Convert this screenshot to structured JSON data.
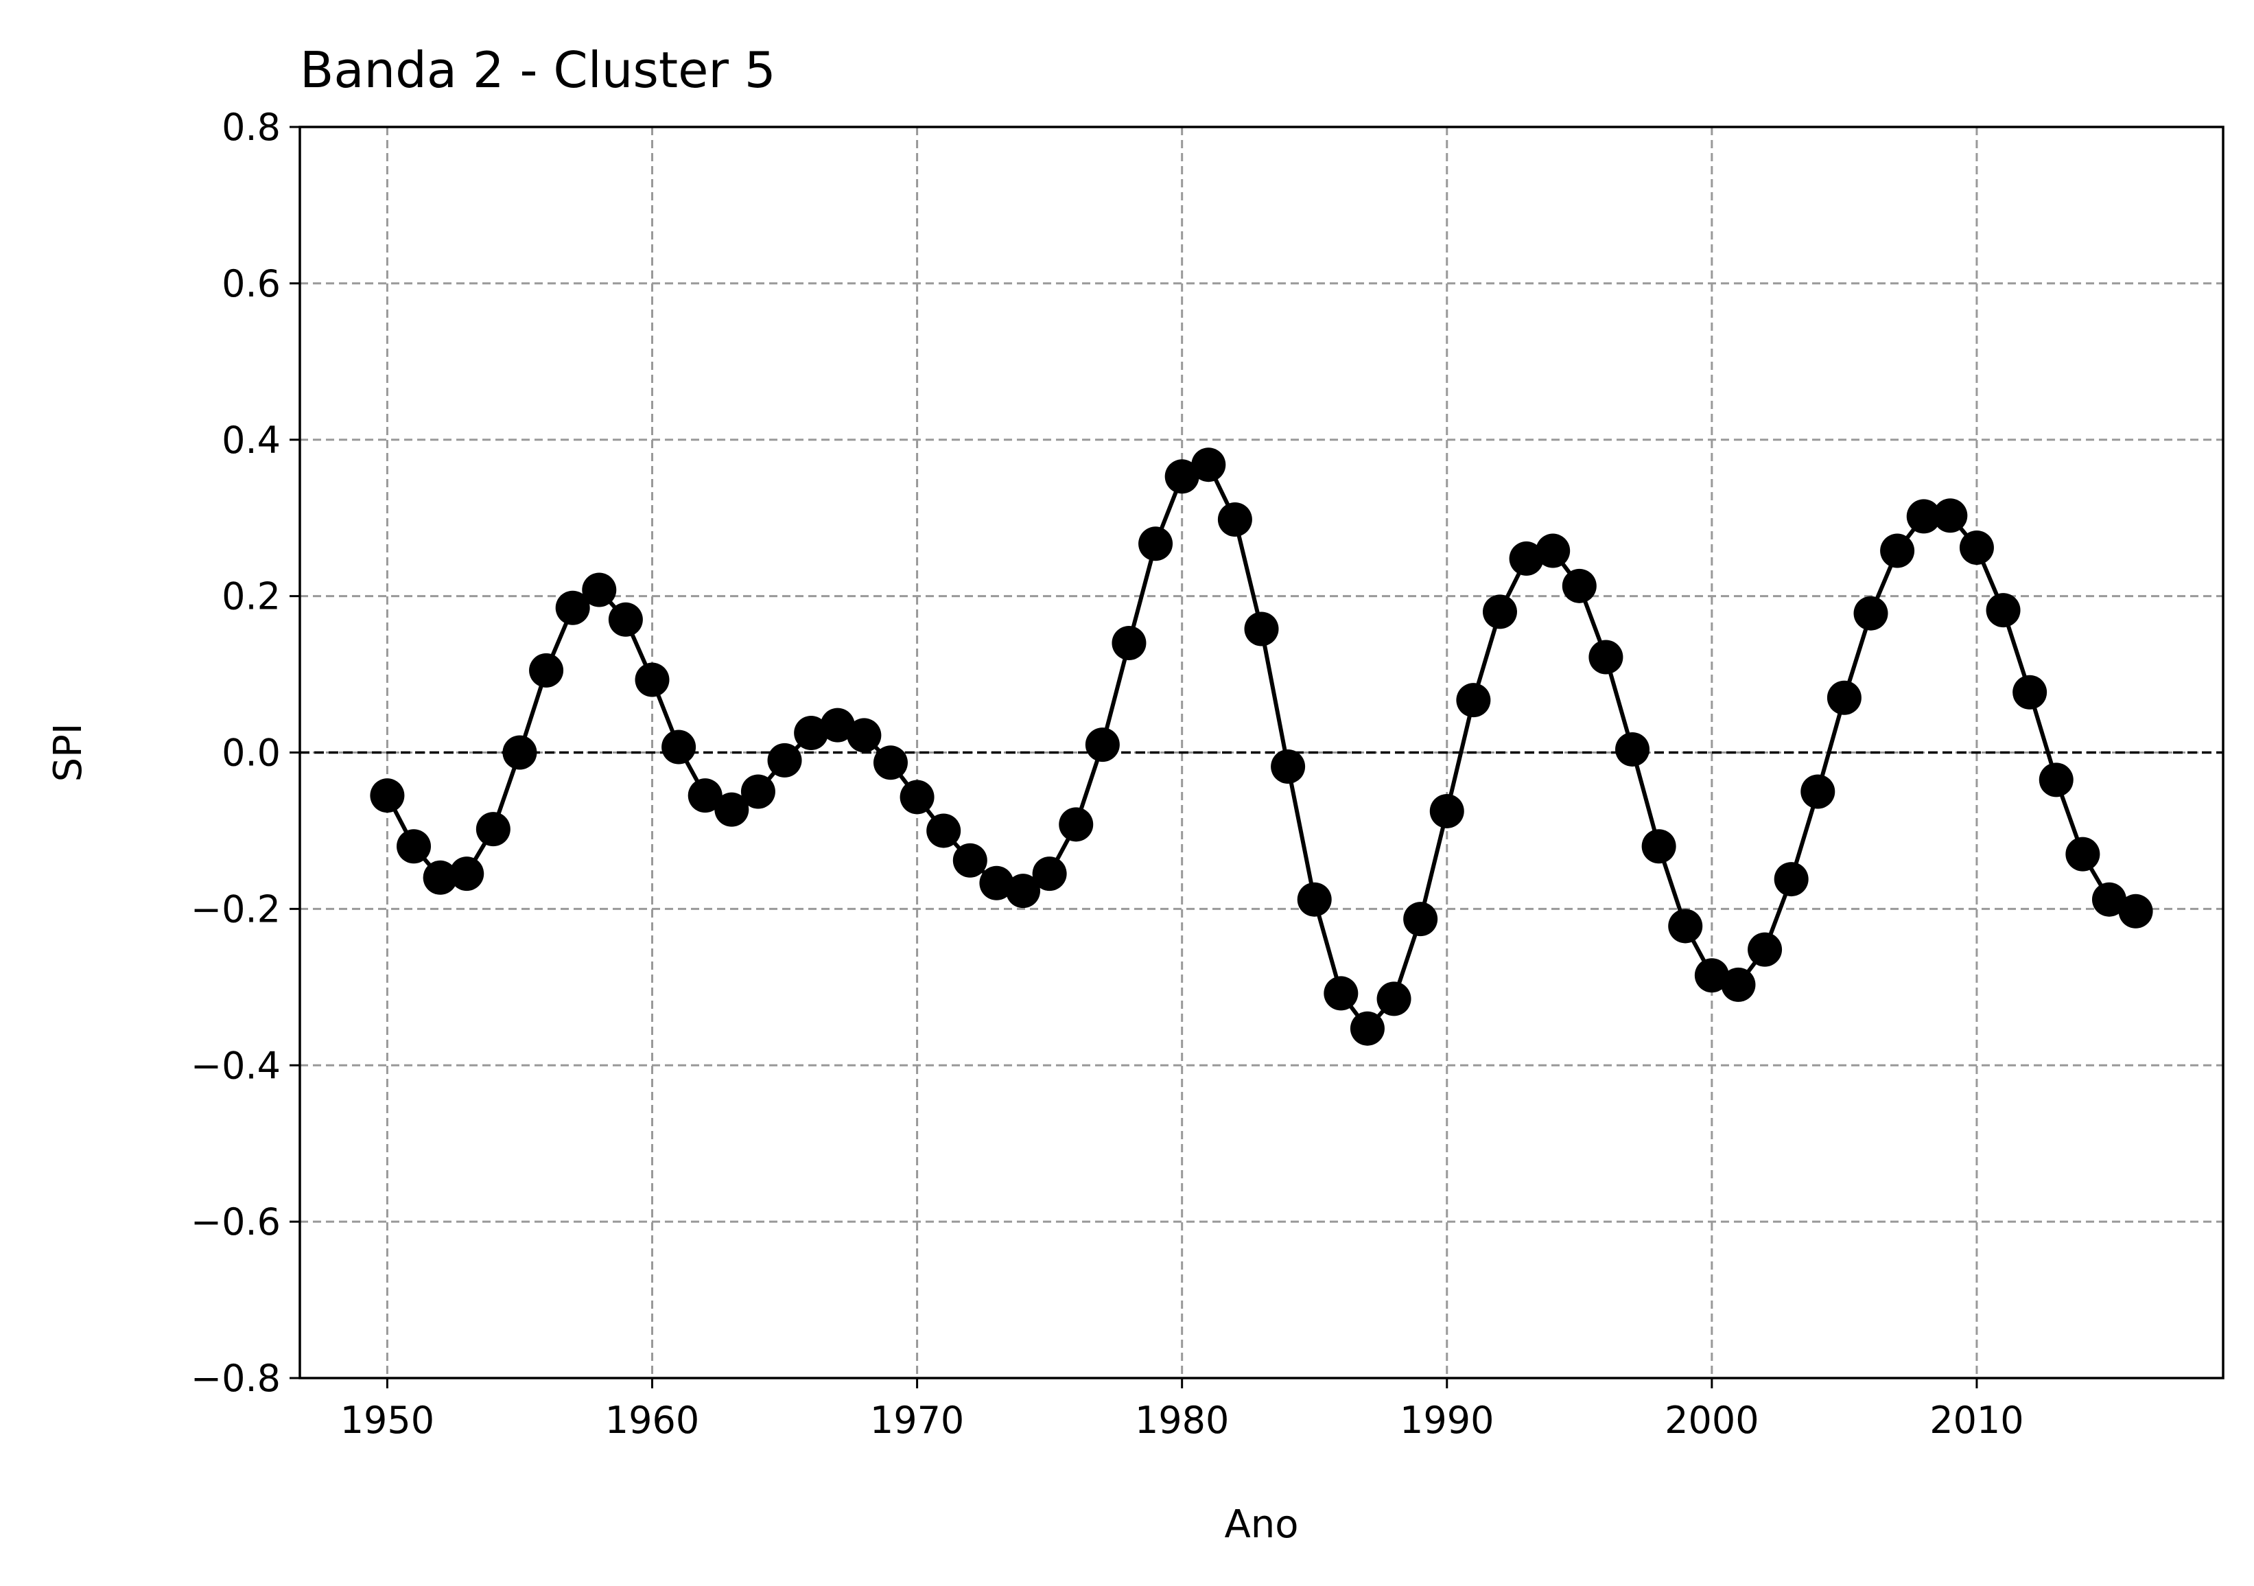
{
  "chart_data": {
    "type": "line",
    "title": "Banda 2 - Cluster 5",
    "xlabel": "Ano",
    "ylabel": "SPI",
    "xlim": [
      1946.7,
      2019.3
    ],
    "ylim": [
      -0.8,
      0.8
    ],
    "xticks": [
      1950,
      1960,
      1970,
      1980,
      1990,
      2000,
      2010
    ],
    "xtick_labels": [
      "1950",
      "1960",
      "1970",
      "1980",
      "1990",
      "2000",
      "2010"
    ],
    "yticks": [
      -0.8,
      -0.6,
      -0.4,
      -0.2,
      0.0,
      0.2,
      0.4,
      0.6,
      0.8
    ],
    "ytick_labels": [
      "−0.8",
      "−0.6",
      "−0.4",
      "−0.2",
      "0.0",
      "0.2",
      "0.4",
      "0.6",
      "0.8"
    ],
    "grid": true,
    "reference_line": 0.0,
    "series": [
      {
        "color": "#000000",
        "marker": "circle",
        "x": [
          1950,
          1951,
          1952,
          1953,
          1954,
          1955,
          1956,
          1957,
          1958,
          1959,
          1960,
          1961,
          1962,
          1963,
          1964,
          1965,
          1966,
          1967,
          1968,
          1969,
          1970,
          1971,
          1972,
          1973,
          1974,
          1975,
          1976,
          1977,
          1978,
          1979,
          1980,
          1981,
          1982,
          1983,
          1984,
          1985,
          1986,
          1987,
          1988,
          1989,
          1990,
          1991,
          1992,
          1993,
          1994,
          1995,
          1996,
          1997,
          1998,
          1999,
          2000,
          2001,
          2002,
          2003,
          2004,
          2005,
          2006,
          2007,
          2008,
          2009,
          2010,
          2011,
          2012,
          2013,
          2014,
          2015,
          2016
        ],
        "y": [
          -0.055,
          -0.12,
          -0.16,
          -0.155,
          -0.098,
          0.0,
          0.105,
          0.185,
          0.208,
          0.17,
          0.093,
          0.007,
          -0.055,
          -0.073,
          -0.05,
          -0.01,
          0.025,
          0.035,
          0.022,
          -0.013,
          -0.057,
          -0.1,
          -0.138,
          -0.167,
          -0.177,
          -0.155,
          -0.092,
          0.01,
          0.14,
          0.267,
          0.353,
          0.368,
          0.298,
          0.158,
          -0.018,
          -0.188,
          -0.308,
          -0.353,
          -0.315,
          -0.213,
          -0.075,
          0.067,
          0.18,
          0.248,
          0.258,
          0.213,
          0.122,
          0.004,
          -0.12,
          -0.222,
          -0.285,
          -0.297,
          -0.252,
          -0.162,
          -0.05,
          0.07,
          0.178,
          0.258,
          0.302,
          0.303,
          0.262,
          0.182,
          0.077,
          -0.035,
          -0.13,
          -0.188,
          -0.203
        ]
      }
    ]
  }
}
